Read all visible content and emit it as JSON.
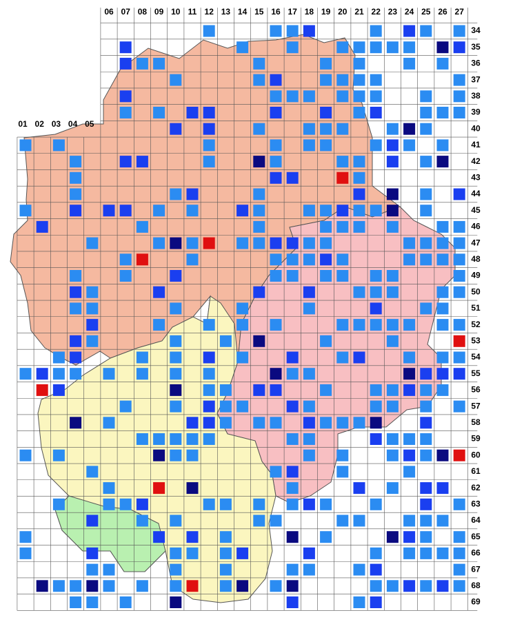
{
  "map": {
    "columns_left": [
      "01",
      "02",
      "03",
      "04",
      "05"
    ],
    "columns_top": [
      "06",
      "07",
      "08",
      "09",
      "10",
      "11",
      "12",
      "13",
      "14",
      "15",
      "16",
      "17",
      "18",
      "19",
      "20",
      "21",
      "22",
      "23",
      "24",
      "25",
      "26",
      "27"
    ],
    "rows": [
      "34",
      "35",
      "36",
      "37",
      "38",
      "39",
      "40",
      "41",
      "42",
      "43",
      "44",
      "45",
      "46",
      "47",
      "48",
      "49",
      "50",
      "51",
      "52",
      "53",
      "54",
      "55",
      "56",
      "57",
      "58",
      "59",
      "60",
      "61",
      "62",
      "63",
      "64",
      "65",
      "66",
      "67",
      "68",
      "69"
    ]
  }
}
